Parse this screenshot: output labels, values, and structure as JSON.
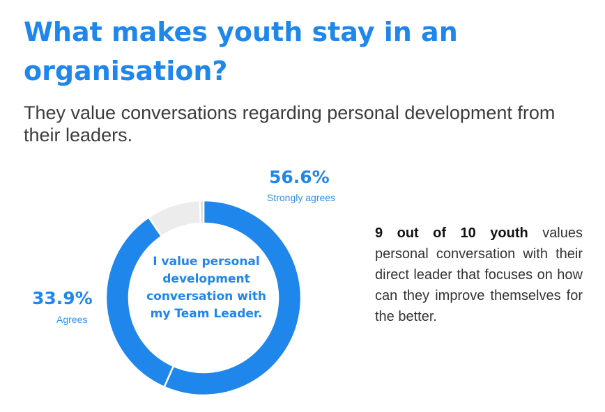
{
  "header": {
    "title": "What makes youth stay in an organisation?",
    "subtitle": "They value conversations regarding personal development from their leaders."
  },
  "chart_data": {
    "type": "pie",
    "style": "donut",
    "center_label": "I value personal development conversation with my Team Leader.",
    "slices": [
      {
        "label": "Strongly agrees",
        "value": 56.6,
        "display": "56.6%",
        "color": "#1f86ec"
      },
      {
        "label": "Agrees",
        "value": 33.9,
        "display": "33.9%",
        "color": "#1f86ec"
      },
      {
        "label": "",
        "value": 8.9,
        "display": "",
        "color": "#ececec"
      },
      {
        "label": "",
        "value": 0.6,
        "display": "",
        "color": "#d9d9d9"
      }
    ]
  },
  "side_note": {
    "highlight": "9 out of 10 youth",
    "text": "values personal conversation with their direct leader that focuses on how can they improve themselves for the better."
  },
  "colors": {
    "accent": "#1f86ec",
    "separator": "#ffffff"
  }
}
